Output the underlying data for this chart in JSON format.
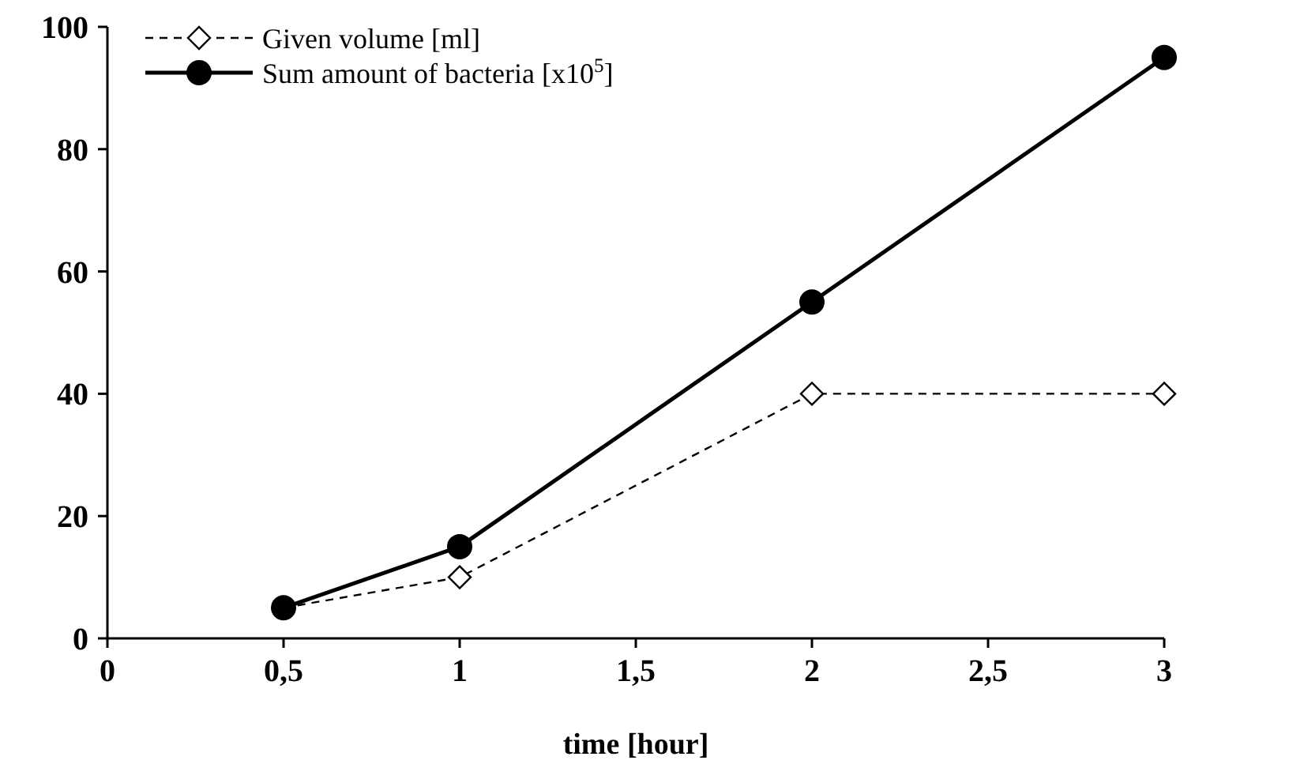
{
  "chart_data": {
    "type": "line",
    "xlabel": "time [hour]",
    "xlim": [
      0,
      3
    ],
    "xticks": [
      0,
      {
        "value": 0.5,
        "label": "0,5"
      },
      1,
      {
        "value": 1.5,
        "label": "1,5"
      },
      2,
      {
        "value": 2.5,
        "label": "2,5"
      },
      3
    ],
    "ylim": [
      0,
      100
    ],
    "yticks": [
      0,
      20,
      40,
      60,
      80,
      100
    ],
    "grid": false,
    "legend": "top left",
    "series": [
      {
        "name": "Given volume [ml]",
        "color": "#000000",
        "x": [
          0.5,
          1,
          2,
          3
        ],
        "values": [
          5,
          10,
          40,
          40
        ],
        "marker": "diamond",
        "line_style": "dashed"
      },
      {
        "name": "Sum amount of bacteria [x10$^{5}$]",
        "color": "#000000",
        "x": [
          0.5,
          1,
          2,
          3
        ],
        "values": [
          5,
          15,
          55,
          95
        ],
        "marker": "circle",
        "line_style": "solid"
      }
    ]
  }
}
